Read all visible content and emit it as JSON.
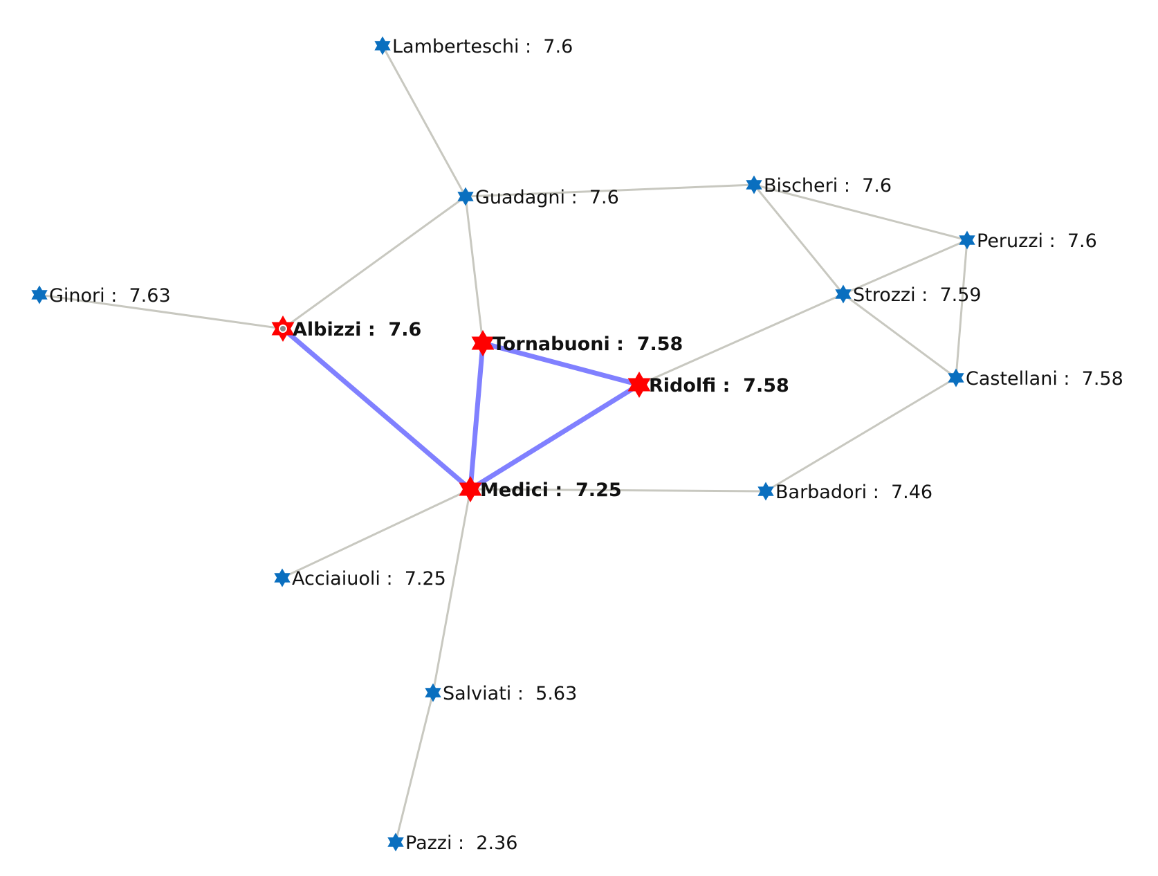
{
  "colors": {
    "background": "#ffffff",
    "edge_default": "#c8c8c0",
    "edge_highlight": "#8080ff",
    "node_default": "#0a6fbf",
    "node_highlight": "#ff0000",
    "node_center_dot": "#888888",
    "label": "#111111"
  },
  "graph": {
    "nodes": [
      {
        "id": "lamberteschi",
        "label": "Lamberteschi :  7.6",
        "highlighted": false
      },
      {
        "id": "guadagni",
        "label": "Guadagni :  7.6",
        "highlighted": false
      },
      {
        "id": "bischeri",
        "label": "Bischeri :  7.6",
        "highlighted": false
      },
      {
        "id": "peruzzi",
        "label": "Peruzzi :  7.6",
        "highlighted": false
      },
      {
        "id": "ginori",
        "label": "Ginori :  7.63",
        "highlighted": false
      },
      {
        "id": "strozzi",
        "label": "Strozzi :  7.59",
        "highlighted": false
      },
      {
        "id": "albizzi",
        "label": "Albizzi :  7.6",
        "highlighted": true,
        "selected": true
      },
      {
        "id": "tornabuoni",
        "label": "Tornabuoni :  7.58",
        "highlighted": true
      },
      {
        "id": "ridolfi",
        "label": "Ridolfi :  7.58",
        "highlighted": true
      },
      {
        "id": "castellani",
        "label": "Castellani :  7.58",
        "highlighted": false
      },
      {
        "id": "medici",
        "label": "Medici :  7.25",
        "highlighted": true
      },
      {
        "id": "barbadori",
        "label": "Barbadori :  7.46",
        "highlighted": false
      },
      {
        "id": "acciaiuoli",
        "label": "Acciaiuoli :  7.25",
        "highlighted": false
      },
      {
        "id": "salviati",
        "label": "Salviati :  5.63",
        "highlighted": false
      },
      {
        "id": "pazzi",
        "label": "Pazzi :  2.36",
        "highlighted": false
      }
    ],
    "edges": [
      {
        "source": "lamberteschi",
        "target": "guadagni",
        "highlighted": false
      },
      {
        "source": "guadagni",
        "target": "bischeri",
        "highlighted": false
      },
      {
        "source": "guadagni",
        "target": "albizzi",
        "highlighted": false
      },
      {
        "source": "guadagni",
        "target": "tornabuoni",
        "highlighted": false
      },
      {
        "source": "bischeri",
        "target": "peruzzi",
        "highlighted": false
      },
      {
        "source": "bischeri",
        "target": "strozzi",
        "highlighted": false
      },
      {
        "source": "peruzzi",
        "target": "strozzi",
        "highlighted": false
      },
      {
        "source": "peruzzi",
        "target": "castellani",
        "highlighted": false
      },
      {
        "source": "strozzi",
        "target": "castellani",
        "highlighted": false
      },
      {
        "source": "strozzi",
        "target": "ridolfi",
        "highlighted": false
      },
      {
        "source": "ginori",
        "target": "albizzi",
        "highlighted": false
      },
      {
        "source": "albizzi",
        "target": "medici",
        "highlighted": true
      },
      {
        "source": "tornabuoni",
        "target": "ridolfi",
        "highlighted": true
      },
      {
        "source": "tornabuoni",
        "target": "medici",
        "highlighted": true
      },
      {
        "source": "ridolfi",
        "target": "medici",
        "highlighted": true
      },
      {
        "source": "castellani",
        "target": "barbadori",
        "highlighted": false
      },
      {
        "source": "medici",
        "target": "barbadori",
        "highlighted": false
      },
      {
        "source": "medici",
        "target": "acciaiuoli",
        "highlighted": false
      },
      {
        "source": "medici",
        "target": "salviati",
        "highlighted": false
      },
      {
        "source": "salviati",
        "target": "pazzi",
        "highlighted": false
      }
    ]
  }
}
